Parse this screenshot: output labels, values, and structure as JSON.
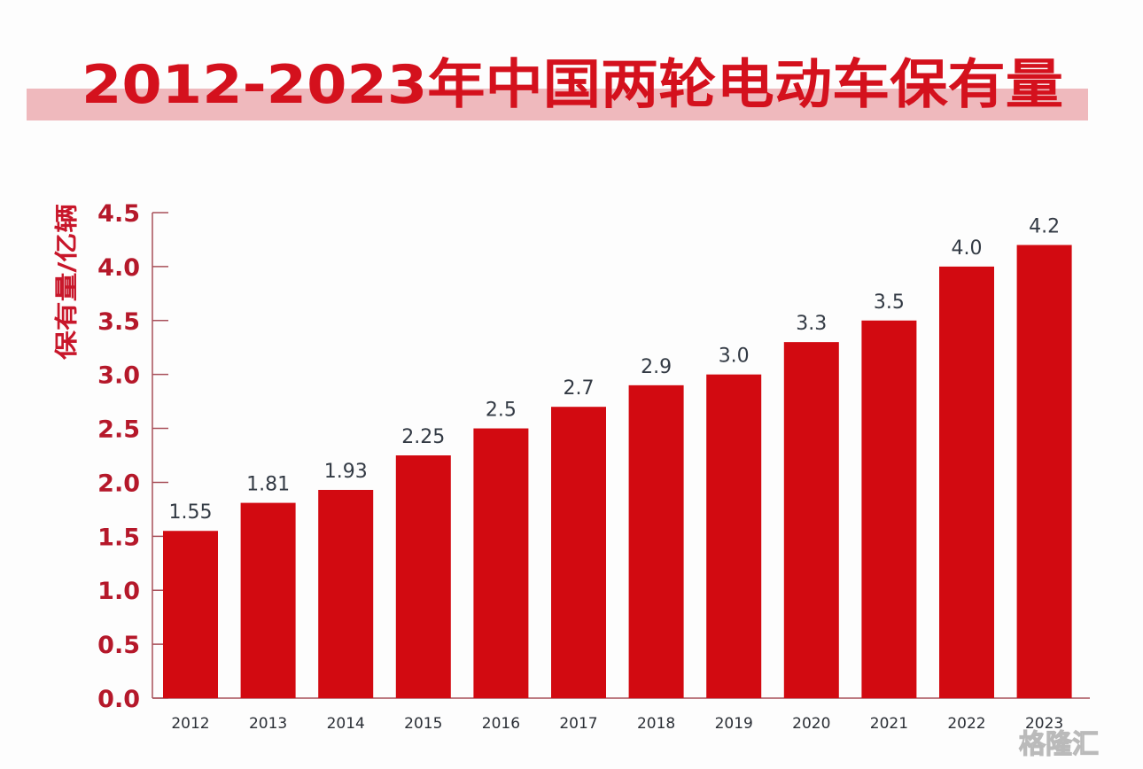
{
  "chart_data": {
    "type": "bar",
    "title": "2012-2023年中国两轮电动车保有量",
    "ylabel": "保有量/亿辆",
    "xlabel": "",
    "categories": [
      "2012",
      "2013",
      "2014",
      "2015",
      "2016",
      "2017",
      "2018",
      "2019",
      "2020",
      "2021",
      "2022",
      "2023"
    ],
    "values": [
      1.55,
      1.81,
      1.93,
      2.25,
      2.5,
      2.7,
      2.9,
      3.0,
      3.3,
      3.5,
      4.0,
      4.2
    ],
    "value_labels": [
      "1.55",
      "1.81",
      "1.93",
      "2.25",
      "2.5",
      "2.7",
      "2.9",
      "3.0",
      "3.3",
      "3.5",
      "4.0",
      "4.2"
    ],
    "ylim": [
      0,
      4.5
    ],
    "yticks": [
      "0.0",
      "0.5",
      "1.0",
      "1.5",
      "2.0",
      "2.5",
      "3.0",
      "3.5",
      "4.0",
      "4.5"
    ],
    "grid": false,
    "colors": {
      "bar": "#d20a11",
      "title": "#d4111d",
      "title_band": "#efb9bd",
      "axis": "#a8505a",
      "tick_label": "#b5182a"
    }
  },
  "watermark": "格隆汇"
}
